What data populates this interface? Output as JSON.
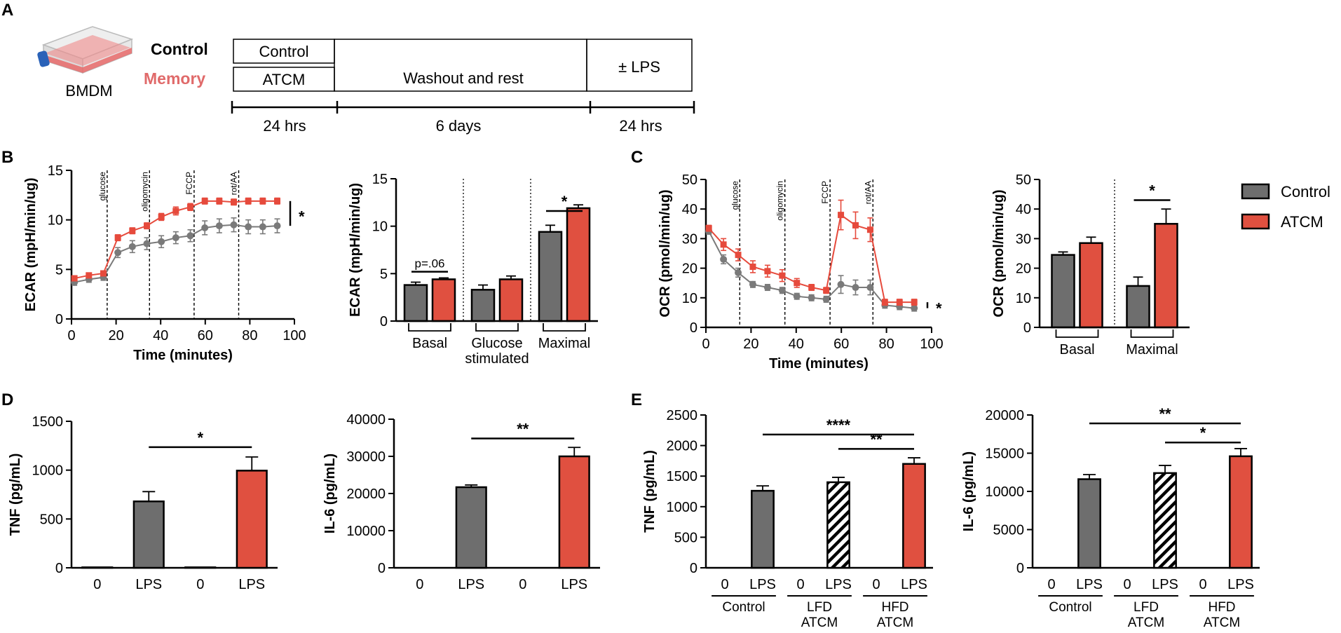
{
  "panel_letters": {
    "A": "A",
    "B": "B",
    "C": "C",
    "D": "D",
    "E": "E"
  },
  "colors": {
    "control": "#6e6e6e",
    "atcm": "#e05040",
    "line_control": "#7a7a7a",
    "line_atcm": "#e64a3c",
    "axis": "#000000"
  },
  "schematic": {
    "flask_label": "BMDM",
    "legend_control": "Control",
    "legend_memory": "Memory",
    "box_control": "Control",
    "box_atcm": "ATCM",
    "box_washout": "Washout and rest",
    "box_lps": "± LPS",
    "time_1": "24 hrs",
    "time_2": "6 days",
    "time_3": "24 hrs"
  },
  "legend": {
    "control": "Control",
    "atcm": "ATCM"
  },
  "chart_data": [
    {
      "id": "ecar_timecourse",
      "type": "line",
      "ylabel": "ECAR (mpH/min/ug)",
      "xlabel": "Time (minutes)",
      "xlim": [
        0,
        100
      ],
      "ylim": [
        0,
        15
      ],
      "xticks": [
        "0",
        "20",
        "40",
        "60",
        "80",
        "100"
      ],
      "yticks": [
        "0",
        "5",
        "10",
        "15"
      ],
      "injections": [
        {
          "label": "glucose",
          "x": 16
        },
        {
          "label": "oligomycin",
          "x": 35
        },
        {
          "label": "FCCP",
          "x": 55
        },
        {
          "label": "rot/AA",
          "x": 75
        }
      ],
      "significance": "*",
      "series": [
        {
          "name": "Control",
          "x": [
            1.3,
            7.8,
            14.3,
            20.8,
            27.3,
            33.8,
            40.3,
            46.8,
            53.3,
            59.8,
            66.3,
            72.8,
            79.3,
            85.8,
            92.3
          ],
          "y": [
            3.7,
            4.0,
            4.2,
            6.7,
            7.3,
            7.6,
            7.8,
            8.2,
            8.4,
            9.2,
            9.4,
            9.5,
            9.3,
            9.3,
            9.4
          ],
          "err": [
            0.3,
            0.3,
            0.3,
            0.5,
            0.6,
            0.6,
            0.6,
            0.6,
            0.6,
            0.7,
            0.7,
            0.7,
            0.7,
            0.7,
            0.7
          ]
        },
        {
          "name": "ATCM",
          "x": [
            1.3,
            7.8,
            14.3,
            20.8,
            27.3,
            33.8,
            40.3,
            46.8,
            53.3,
            59.8,
            66.3,
            72.8,
            79.3,
            85.8,
            92.3
          ],
          "y": [
            4.1,
            4.4,
            4.6,
            8.2,
            8.9,
            9.4,
            10.3,
            10.9,
            11.3,
            11.9,
            11.9,
            11.8,
            11.9,
            11.9,
            11.9
          ],
          "err": [
            0.25,
            0.25,
            0.25,
            0.3,
            0.3,
            0.3,
            0.35,
            0.4,
            0.35,
            0.3,
            0.3,
            0.3,
            0.3,
            0.3,
            0.3
          ]
        }
      ]
    },
    {
      "id": "ecar_bars",
      "type": "bar",
      "ylabel": "ECAR (mpH/min/ug)",
      "ylim": [
        0,
        15
      ],
      "yticks": [
        "0",
        "5",
        "10",
        "15"
      ],
      "categories": [
        "Basal",
        "Glucose stimulated",
        "Maximal"
      ],
      "category_lines": [
        [
          "Basal"
        ],
        [
          "Glucose",
          "stimulated"
        ],
        [
          "Maximal"
        ]
      ],
      "series": [
        {
          "name": "Control",
          "values": [
            3.8,
            3.3,
            9.4
          ],
          "err": [
            0.3,
            0.5,
            0.7
          ]
        },
        {
          "name": "ATCM",
          "values": [
            4.4,
            4.4,
            11.9
          ],
          "err": [
            0.15,
            0.35,
            0.35
          ]
        }
      ],
      "annotations": [
        {
          "group": 0,
          "text": "p=.06",
          "y": 5.2
        },
        {
          "group": 2,
          "text": "*",
          "y": 11.6
        }
      ]
    },
    {
      "id": "ocr_timecourse",
      "type": "line",
      "ylabel": "OCR (pmol/min/ug)",
      "xlabel": "Time (minutes)",
      "xlim": [
        0,
        100
      ],
      "ylim": [
        0,
        50
      ],
      "xticks": [
        "0",
        "20",
        "40",
        "60",
        "80",
        "100"
      ],
      "yticks": [
        "0",
        "10",
        "20",
        "30",
        "40",
        "50"
      ],
      "injections": [
        {
          "label": "glucose",
          "x": 15
        },
        {
          "label": "oligomycin",
          "x": 35
        },
        {
          "label": "FCCP",
          "x": 55
        },
        {
          "label": "rot/AA",
          "x": 74
        }
      ],
      "significance": "*",
      "series": [
        {
          "name": "Control",
          "x": [
            1.3,
            7.8,
            14.3,
            20.8,
            27.3,
            33.8,
            40.3,
            46.8,
            53.3,
            59.8,
            66.3,
            72.8,
            79.3,
            85.8,
            92.3
          ],
          "y": [
            32.5,
            23.0,
            18.5,
            14.5,
            13.5,
            12.5,
            10.5,
            10.0,
            9.5,
            14.5,
            13.5,
            13.5,
            7.5,
            7.0,
            6.5
          ],
          "err": [
            1.0,
            1.5,
            1.5,
            1.0,
            1.0,
            1.0,
            1.0,
            1.0,
            1.0,
            3.0,
            2.5,
            2.5,
            1.0,
            1.0,
            1.0
          ]
        },
        {
          "name": "ATCM",
          "x": [
            1.3,
            7.8,
            14.3,
            20.8,
            27.3,
            33.8,
            40.3,
            46.8,
            53.3,
            59.8,
            66.3,
            72.8,
            79.3,
            85.8,
            92.3
          ],
          "y": [
            33.5,
            28.0,
            24.5,
            20.5,
            19.0,
            17.5,
            15.0,
            13.5,
            12.5,
            38.0,
            34.5,
            33.0,
            8.5,
            8.5,
            8.5
          ],
          "err": [
            1.0,
            2.0,
            2.0,
            2.0,
            2.0,
            2.0,
            1.5,
            1.0,
            1.0,
            5.0,
            4.5,
            4.0,
            1.0,
            1.0,
            1.0
          ]
        }
      ]
    },
    {
      "id": "ocr_bars",
      "type": "bar",
      "ylabel": "OCR (pmol/min/ug)",
      "ylim": [
        0,
        50
      ],
      "yticks": [
        "0",
        "10",
        "20",
        "30",
        "40",
        "50"
      ],
      "categories": [
        "Basal",
        "Maximal"
      ],
      "category_lines": [
        [
          "Basal"
        ],
        [
          "Maximal"
        ]
      ],
      "series": [
        {
          "name": "Control",
          "values": [
            24.5,
            14.0
          ],
          "err": [
            1.0,
            3.0
          ]
        },
        {
          "name": "ATCM",
          "values": [
            28.5,
            35.0
          ],
          "err": [
            2.0,
            5.0
          ]
        }
      ],
      "annotations": [
        {
          "group": 1,
          "text": "*",
          "y": 43.0
        }
      ]
    },
    {
      "id": "tnf_d",
      "type": "bar",
      "ylabel": "TNF (pg/mL)",
      "ylim": [
        0,
        1500
      ],
      "yticks": [
        "0",
        "500",
        "1000",
        "1500"
      ],
      "categories": [
        "0",
        "LPS",
        "0",
        "LPS"
      ],
      "values": [
        5,
        680,
        5,
        995
      ],
      "err": [
        0,
        100,
        0,
        140
      ],
      "fills": [
        "control",
        "control",
        "atcm",
        "atcm"
      ],
      "brackets": [
        {
          "from": 1,
          "to": 3,
          "y": 1235,
          "text": "*"
        }
      ]
    },
    {
      "id": "il6_d",
      "type": "bar",
      "ylabel": "IL-6 (pg/mL)",
      "ylim": [
        0,
        40000
      ],
      "yticks": [
        "0",
        "10000",
        "20000",
        "30000",
        "40000"
      ],
      "categories": [
        "0",
        "LPS",
        "0",
        "LPS"
      ],
      "values": [
        0,
        21700,
        0,
        30000
      ],
      "err": [
        0,
        600,
        0,
        2400
      ],
      "fills": [
        "control",
        "control",
        "atcm",
        "atcm"
      ],
      "brackets": [
        {
          "from": 1,
          "to": 3,
          "y": 34800,
          "text": "**"
        }
      ]
    },
    {
      "id": "tnf_e",
      "type": "bar",
      "ylabel": "TNF (pg/mL)",
      "ylim": [
        0,
        2500
      ],
      "yticks": [
        "0",
        "500",
        "1000",
        "1500",
        "2000",
        "2500"
      ],
      "categories": [
        "0",
        "LPS",
        "0",
        "LPS",
        "0",
        "LPS"
      ],
      "values": [
        0,
        1260,
        0,
        1400,
        0,
        1700
      ],
      "err": [
        0,
        80,
        0,
        80,
        0,
        100
      ],
      "fills": [
        "control",
        "control",
        "hatch",
        "hatch",
        "atcm",
        "atcm"
      ],
      "groups": [
        [
          "Control"
        ],
        [
          "LFD",
          "ATCM"
        ],
        [
          "HFD",
          "ATCM"
        ]
      ],
      "brackets": [
        {
          "from": 1,
          "to": 5,
          "y": 2180,
          "text": "****"
        },
        {
          "from": 3,
          "to": 5,
          "y": 1945,
          "text": "**"
        }
      ]
    },
    {
      "id": "il6_e",
      "type": "bar",
      "ylabel": "IL-6 (pg/mL)",
      "ylim": [
        0,
        20000
      ],
      "yticks": [
        "0",
        "5000",
        "10000",
        "15000",
        "20000"
      ],
      "categories": [
        "0",
        "LPS",
        "0",
        "LPS",
        "0",
        "LPS"
      ],
      "values": [
        0,
        11600,
        0,
        12400,
        0,
        14600
      ],
      "err": [
        0,
        600,
        0,
        1000,
        0,
        1000
      ],
      "fills": [
        "control",
        "control",
        "hatch",
        "hatch",
        "atcm",
        "atcm"
      ],
      "groups": [
        [
          "Control"
        ],
        [
          "LFD",
          "ATCM"
        ],
        [
          "HFD",
          "ATCM"
        ]
      ],
      "brackets": [
        {
          "from": 1,
          "to": 5,
          "y": 18900,
          "text": "**"
        },
        {
          "from": 3,
          "to": 5,
          "y": 16400,
          "text": "*"
        }
      ]
    }
  ]
}
